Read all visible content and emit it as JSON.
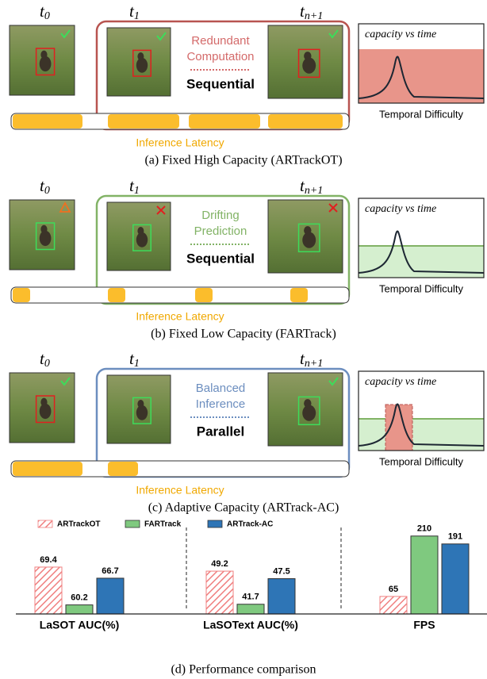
{
  "panels": [
    {
      "frame_labels": [
        {
          "base": "t",
          "sub": "0"
        },
        {
          "base": "t",
          "sub": "1"
        },
        {
          "base": "t",
          "sub": "n+1"
        }
      ],
      "box_text": [
        "Redundant",
        "Computation"
      ],
      "mode": "Sequential",
      "plot_title": "capacity vs time",
      "plot_xlabel": "Temporal Difficulty",
      "latency_label": "Inference Latency",
      "caption": "(a) Fixed High Capacity (ARTrackOT)"
    },
    {
      "frame_labels": [
        {
          "base": "t",
          "sub": "0"
        },
        {
          "base": "t",
          "sub": "1"
        },
        {
          "base": "t",
          "sub": "n+1"
        }
      ],
      "box_text": [
        "Drifting",
        "Prediction"
      ],
      "mode": "Sequential",
      "plot_title": "capacity vs time",
      "plot_xlabel": "Temporal Difficulty",
      "latency_label": "Inference Latency",
      "caption": "(b) Fixed Low Capacity (FARTrack)"
    },
    {
      "frame_labels": [
        {
          "base": "t",
          "sub": "0"
        },
        {
          "base": "t",
          "sub": "1"
        },
        {
          "base": "t",
          "sub": "n+1"
        }
      ],
      "box_text": [
        "Balanced",
        "Inference"
      ],
      "mode": "Parallel",
      "plot_title": "capacity vs time",
      "plot_xlabel": "Temporal Difficulty",
      "latency_label": "Inference Latency",
      "caption": "(c) Adaptive Capacity (ARTrack-AC)"
    }
  ],
  "chart_data": {
    "type": "bar",
    "caption": "(d) Performance comparison",
    "categories": [
      "LaSOT AUC(%)",
      "LaSOText AUC(%)",
      "FPS"
    ],
    "group_ylims": [
      [
        58,
        80
      ],
      [
        39.5,
        60
      ],
      [
        23,
        240
      ]
    ],
    "series": [
      {
        "name": "ARTrackOT",
        "color": "#f08080",
        "hatch": true,
        "values": [
          69.4,
          49.2,
          65
        ]
      },
      {
        "name": "FARTrack",
        "color": "#7fc97f",
        "hatch": false,
        "values": [
          60.2,
          41.7,
          210
        ]
      },
      {
        "name": "ARTrack-AC",
        "color": "#2e75b6",
        "hatch": false,
        "values": [
          66.7,
          47.5,
          191
        ]
      }
    ]
  }
}
